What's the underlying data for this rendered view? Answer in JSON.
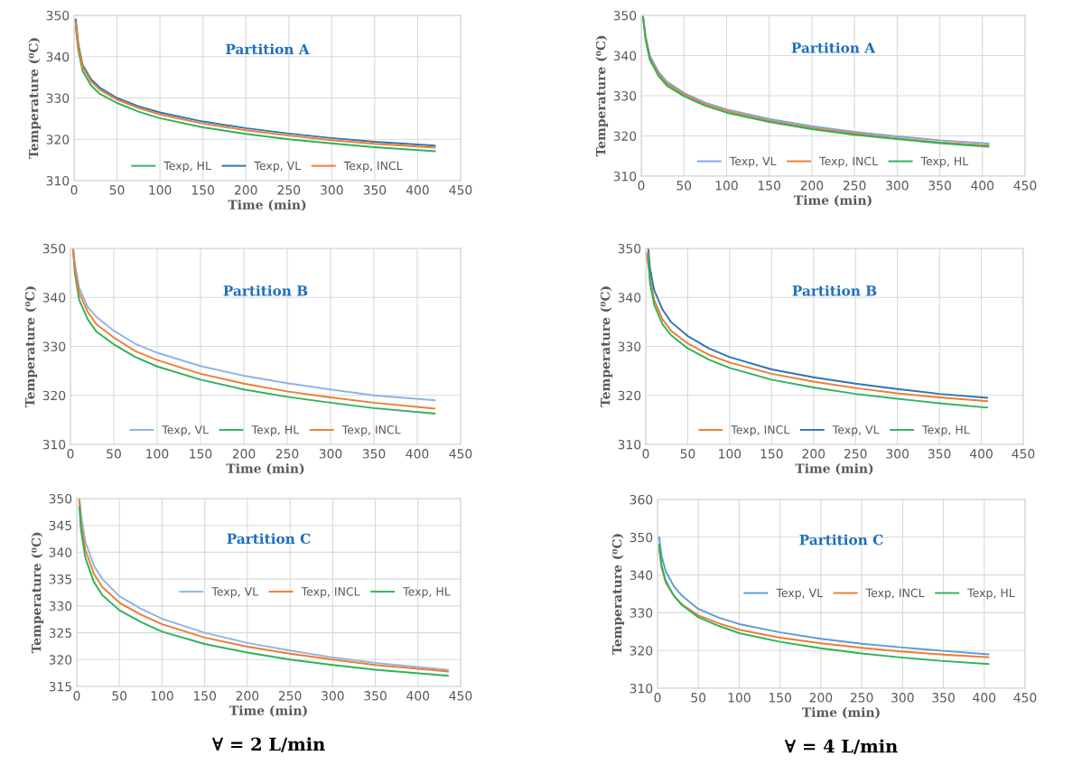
{
  "chart_data": [
    {
      "type": "line",
      "title": "Partition A",
      "xlabel": "Time (min)",
      "ylabel": "Temperature (⁰C)",
      "xlim": [
        0,
        450
      ],
      "xticks": [
        0,
        50,
        100,
        150,
        200,
        250,
        300,
        350,
        400,
        450
      ],
      "ylim": [
        310,
        350
      ],
      "yticks": [
        310,
        320,
        330,
        340,
        350
      ],
      "grid": true,
      "legend": "bottom",
      "x": [
        2,
        5,
        10,
        20,
        30,
        50,
        75,
        100,
        150,
        200,
        250,
        300,
        350,
        420
      ],
      "series": [
        {
          "name": "Texp, HL",
          "color": "#2db35a",
          "values": [
            347,
            341.5,
            336.5,
            333,
            331,
            328.8,
            326.7,
            325.1,
            322.9,
            321.3,
            320,
            319,
            318.1,
            317.1
          ]
        },
        {
          "name": "Texp, VL",
          "color": "#2e75b6",
          "values": [
            349,
            343,
            338,
            334.5,
            332.5,
            330,
            328,
            326.5,
            324.3,
            322.7,
            321.4,
            320.3,
            319.4,
            318.5
          ]
        },
        {
          "name": "Texp, INCL",
          "color": "#ed7d31",
          "values": [
            348,
            342.5,
            337.5,
            334,
            332,
            329.6,
            327.6,
            326,
            323.8,
            322.2,
            320.9,
            319.8,
            318.9,
            318
          ]
        }
      ]
    },
    {
      "type": "line",
      "title": "Partition A",
      "xlabel": "Time (min)",
      "ylabel": "Temperature (⁰C)",
      "xlim": [
        0,
        450
      ],
      "xticks": [
        0,
        50,
        100,
        150,
        200,
        250,
        300,
        350,
        400,
        450
      ],
      "ylim": [
        310,
        350
      ],
      "yticks": [
        310,
        320,
        330,
        340,
        350
      ],
      "grid": true,
      "legend": "bottom",
      "x": [
        2,
        5,
        10,
        20,
        30,
        50,
        75,
        100,
        150,
        200,
        250,
        300,
        350,
        407
      ],
      "series": [
        {
          "name": "Texp, VL",
          "color": "#7aa6dc",
          "values": [
            350,
            345,
            340,
            336,
            333.5,
            330.7,
            328.3,
            326.6,
            324.2,
            322.4,
            321,
            319.9,
            318.9,
            318.1
          ]
        },
        {
          "name": "Texp, INCL",
          "color": "#ed7d31",
          "values": [
            350,
            344.5,
            339.5,
            335.5,
            333,
            330.3,
            327.9,
            326.2,
            323.8,
            322,
            320.6,
            319.4,
            318.4,
            317.6
          ]
        },
        {
          "name": "Texp, HL",
          "color": "#2db35a",
          "values": [
            349.5,
            344,
            339,
            335,
            332.5,
            329.9,
            327.5,
            325.8,
            323.5,
            321.7,
            320.3,
            319.2,
            318.2,
            317.3
          ]
        }
      ]
    },
    {
      "type": "line",
      "title": "Partition B",
      "xlabel": "Time (min)",
      "ylabel": "Temperature (⁰C)",
      "xlim": [
        0,
        450
      ],
      "xticks": [
        0,
        50,
        100,
        150,
        200,
        250,
        300,
        350,
        400,
        450
      ],
      "ylim": [
        310,
        350
      ],
      "yticks": [
        310,
        320,
        330,
        340,
        350
      ],
      "grid": true,
      "legend": "bottom",
      "x": [
        3,
        5,
        10,
        20,
        30,
        50,
        75,
        100,
        150,
        200,
        250,
        300,
        350,
        420
      ],
      "series": [
        {
          "name": "Texp, VL",
          "color": "#8fb4e3",
          "values": [
            350,
            347,
            342,
            338,
            336,
            333.2,
            330.5,
            328.7,
            326,
            324,
            322.5,
            321.2,
            320,
            319
          ]
        },
        {
          "name": "Texp, HL",
          "color": "#2db35a",
          "values": [
            350,
            345,
            339.5,
            335.5,
            333,
            330.4,
            327.8,
            325.9,
            323.2,
            321.2,
            319.7,
            318.5,
            317.4,
            316.3
          ]
        },
        {
          "name": "Texp, INCL",
          "color": "#ed7d31",
          "values": [
            350,
            346,
            341,
            337,
            334.5,
            331.8,
            329,
            327.2,
            324.4,
            322.4,
            320.8,
            319.6,
            318.5,
            317.3
          ]
        }
      ]
    },
    {
      "type": "line",
      "title": "Partition B",
      "xlabel": "Time (min)",
      "ylabel": "Temperature (⁰C)",
      "xlim": [
        0,
        450
      ],
      "xticks": [
        0,
        50,
        100,
        150,
        200,
        250,
        300,
        350,
        400,
        450
      ],
      "ylim": [
        310,
        350
      ],
      "yticks": [
        310,
        320,
        330,
        340,
        350
      ],
      "grid": true,
      "legend": "bottom",
      "x": [
        3,
        5,
        10,
        20,
        30,
        50,
        75,
        100,
        150,
        200,
        250,
        300,
        350,
        407
      ],
      "series": [
        {
          "name": "Texp, INCL",
          "color": "#ed7d31",
          "x": [
            1,
            5,
            10,
            20,
            30,
            50,
            75,
            100,
            150,
            200,
            250,
            300,
            350,
            407
          ],
          "values": [
            349,
            344,
            339.5,
            335.5,
            333.2,
            330.6,
            328.3,
            326.7,
            324.4,
            322.8,
            321.5,
            320.4,
            319.6,
            318.8
          ]
        },
        {
          "name": "Texp, VL",
          "color": "#2e75b6",
          "values": [
            350,
            346,
            341.5,
            337.5,
            335,
            332.1,
            329.6,
            327.8,
            325.3,
            323.7,
            322.4,
            321.3,
            320.3,
            319.5
          ]
        },
        {
          "name": "Texp, HL",
          "color": "#2db35a",
          "values": [
            348.5,
            343,
            338.5,
            334.5,
            332.3,
            329.6,
            327.3,
            325.6,
            323.2,
            321.6,
            320.3,
            319.3,
            318.4,
            317.5
          ]
        }
      ]
    },
    {
      "type": "line",
      "title": "Partition C",
      "xlabel": "Time (min)",
      "ylabel": "Temperature (⁰C)",
      "xlim": [
        0,
        450
      ],
      "xticks": [
        0,
        50,
        100,
        150,
        200,
        250,
        300,
        350,
        400,
        450
      ],
      "ylim": [
        315,
        350
      ],
      "yticks": [
        315,
        320,
        325,
        330,
        335,
        340,
        345,
        350
      ],
      "grid": true,
      "legend": "right",
      "annotations": [
        "∀ = 2 L/min"
      ],
      "x": [
        3,
        5,
        10,
        20,
        30,
        50,
        75,
        100,
        150,
        200,
        250,
        300,
        350,
        435
      ],
      "series": [
        {
          "name": "Texp, VL",
          "color": "#8fb4e3",
          "values": [
            350,
            347,
            342,
            337.5,
            335,
            331.8,
            329.5,
            327.6,
            325,
            323.1,
            321.7,
            320.4,
            319.4,
            318.1
          ]
        },
        {
          "name": "Texp, INCL",
          "color": "#ed7d31",
          "values": [
            350,
            345.5,
            340.5,
            336,
            333.5,
            330.6,
            328.4,
            326.6,
            324.1,
            322.4,
            321.1,
            320,
            319,
            317.8
          ]
        },
        {
          "name": "Texp, HL",
          "color": "#2db35a",
          "values": [
            348.5,
            344,
            339,
            334.5,
            332,
            329.2,
            327,
            325.2,
            322.9,
            321.3,
            320,
            319,
            318.1,
            317
          ]
        }
      ]
    },
    {
      "type": "line",
      "title": "Partition C",
      "xlabel": "Time (min)",
      "ylabel": "Temperature (⁰C)",
      "xlim": [
        0,
        450
      ],
      "xticks": [
        0,
        50,
        100,
        150,
        200,
        250,
        300,
        350,
        400,
        450
      ],
      "ylim": [
        310,
        360
      ],
      "yticks": [
        310,
        320,
        330,
        340,
        350,
        360
      ],
      "grid": true,
      "legend": "right",
      "annotations": [
        "∀ = 4 L/min"
      ],
      "x": [
        2,
        5,
        10,
        20,
        30,
        50,
        75,
        100,
        150,
        200,
        250,
        300,
        350,
        405
      ],
      "series": [
        {
          "name": "Texp, VL",
          "color": "#5b9bd5",
          "values": [
            350,
            345,
            341,
            337,
            334.5,
            331,
            328.7,
            327,
            324.8,
            323.1,
            321.8,
            320.8,
            319.9,
            319
          ]
        },
        {
          "name": "Texp, INCL",
          "color": "#ed7d31",
          "values": [
            347,
            342,
            338,
            334.5,
            332.2,
            329.3,
            327.2,
            325.5,
            323.4,
            321.9,
            320.7,
            319.7,
            318.9,
            318.2
          ]
        },
        {
          "name": "Texp, HL",
          "color": "#2db35a",
          "values": [
            348,
            342.5,
            338.5,
            334.5,
            332,
            328.8,
            326.5,
            324.6,
            322.3,
            320.6,
            319.2,
            318.1,
            317.2,
            316.4
          ]
        }
      ]
    }
  ]
}
